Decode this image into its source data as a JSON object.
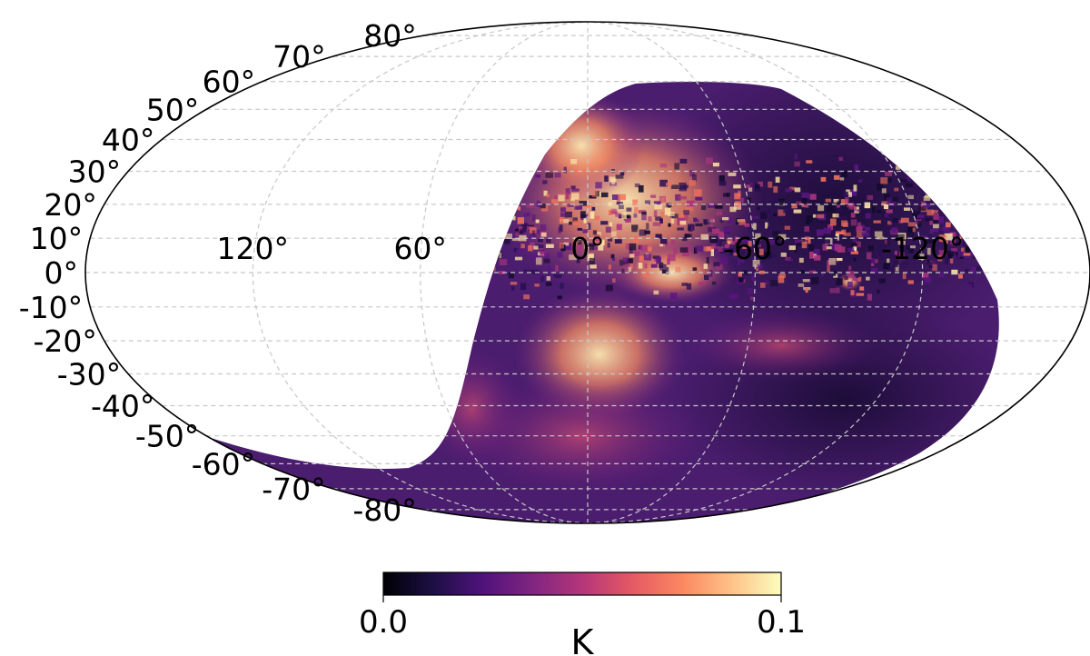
{
  "map": {
    "projection": "Mollweide",
    "coordinate_frame": "galactic",
    "latitude_labels": [
      "80°",
      "70°",
      "60°",
      "50°",
      "40°",
      "30°",
      "20°",
      "10°",
      "0°",
      "-10°",
      "-20°",
      "-30°",
      "-40°",
      "-50°",
      "-60°",
      "-70°",
      "-80°"
    ],
    "longitude_labels": [
      "120°",
      "60°",
      "0°",
      "-60°",
      "-120°"
    ],
    "grid": true,
    "colors": {
      "background": "#ffffff",
      "outline": "#000000",
      "grid": "#c8c8c8",
      "no_data": "#ffffff"
    }
  },
  "colorbar": {
    "colormap": "magma",
    "min_label": "0.0",
    "max_label": "0.1",
    "unit": "K",
    "range": [
      0.0,
      0.1
    ],
    "stops": [
      "#000004",
      "#1c1044",
      "#4f127b",
      "#812581",
      "#b5367a",
      "#e55964",
      "#fb8761",
      "#fec287",
      "#fcfdbf"
    ]
  }
}
